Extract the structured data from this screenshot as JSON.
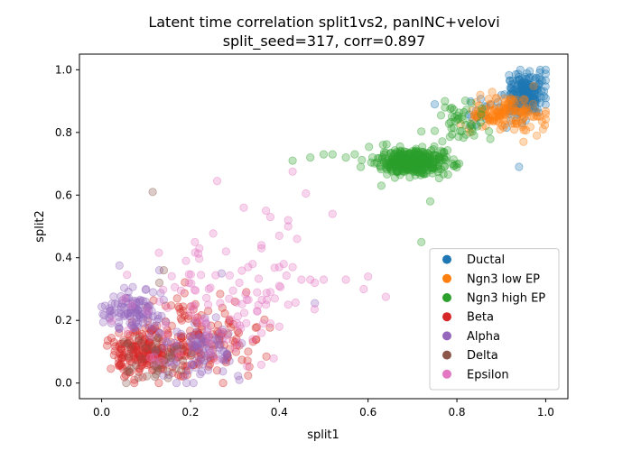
{
  "chart_data": {
    "type": "scatter",
    "title": "Latent time correlation split1vs2, panINC+velovi",
    "subtitle": "split_seed=317, corr=0.897",
    "xlabel": "split1",
    "ylabel": "split2",
    "xlim": [
      -0.05,
      1.05
    ],
    "ylim": [
      -0.05,
      1.05
    ],
    "xticks": [
      "0.0",
      "0.2",
      "0.4",
      "0.6",
      "0.8",
      "1.0"
    ],
    "yticks": [
      "0.0",
      "0.2",
      "0.4",
      "0.6",
      "0.8",
      "1.0"
    ],
    "grid": false,
    "legend_position": "lower-right",
    "series": [
      {
        "name": "Ductal",
        "color": "#1f77b4",
        "clusters": [
          {
            "cx": 0.955,
            "cy": 0.925,
            "sx": 0.022,
            "sy": 0.035,
            "n": 180
          },
          {
            "cx": 0.88,
            "cy": 0.86,
            "sx": 0.04,
            "sy": 0.03,
            "n": 25
          }
        ],
        "points": [
          [
            0.94,
            0.69
          ],
          [
            0.75,
            0.89
          ],
          [
            0.83,
            0.82
          ]
        ]
      },
      {
        "name": "Ngn3 low EP",
        "color": "#ff7f0e",
        "clusters": [
          {
            "cx": 0.9,
            "cy": 0.86,
            "sx": 0.035,
            "sy": 0.028,
            "n": 120
          },
          {
            "cx": 0.97,
            "cy": 0.85,
            "sx": 0.02,
            "sy": 0.02,
            "n": 15
          }
        ],
        "points": [
          [
            0.98,
            0.79
          ],
          [
            0.83,
            0.8
          ],
          [
            0.95,
            0.77
          ]
        ]
      },
      {
        "name": "Ngn3 high EP",
        "color": "#2ca02c",
        "clusters": [
          {
            "cx": 0.7,
            "cy": 0.705,
            "sx": 0.04,
            "sy": 0.02,
            "n": 380
          },
          {
            "cx": 0.81,
            "cy": 0.83,
            "sx": 0.035,
            "sy": 0.03,
            "n": 45
          }
        ],
        "points": [
          [
            0.47,
            0.72
          ],
          [
            0.5,
            0.73
          ],
          [
            0.52,
            0.73
          ],
          [
            0.55,
            0.72
          ],
          [
            0.57,
            0.73
          ],
          [
            0.43,
            0.71
          ],
          [
            0.72,
            0.45
          ],
          [
            0.61,
            0.72
          ],
          [
            0.63,
            0.63
          ],
          [
            0.74,
            0.58
          ],
          [
            0.79,
            0.7
          ]
        ]
      },
      {
        "name": "Beta",
        "color": "#d62728",
        "clusters": [
          {
            "cx": 0.09,
            "cy": 0.1,
            "sx": 0.04,
            "sy": 0.035,
            "n": 170
          },
          {
            "cx": 0.21,
            "cy": 0.14,
            "sx": 0.06,
            "sy": 0.065,
            "n": 170
          }
        ],
        "points": [
          [
            0.3,
            0.26
          ],
          [
            0.31,
            0.12
          ],
          [
            0.33,
            0.1
          ],
          [
            0.26,
            0.04
          ],
          [
            0.24,
            0.23
          ],
          [
            0.17,
            0.27
          ]
        ]
      },
      {
        "name": "Alpha",
        "color": "#9467bd",
        "clusters": [
          {
            "cx": 0.07,
            "cy": 0.23,
            "sx": 0.035,
            "sy": 0.03,
            "n": 110
          },
          {
            "cx": 0.22,
            "cy": 0.1,
            "sx": 0.045,
            "sy": 0.05,
            "n": 90
          }
        ],
        "points": [
          [
            0.04,
            0.375
          ],
          [
            0.48,
            0.255
          ],
          [
            0.27,
            0.35
          ],
          [
            0.13,
            0.36
          ],
          [
            0.1,
            0.3
          ],
          [
            0.31,
            0.01
          ]
        ]
      },
      {
        "name": "Delta",
        "color": "#8c564b",
        "clusters": [
          {
            "cx": 0.12,
            "cy": 0.08,
            "sx": 0.035,
            "sy": 0.035,
            "n": 40
          }
        ],
        "points": [
          [
            0.115,
            0.61
          ],
          [
            0.14,
            0.36
          ],
          [
            0.13,
            0.32
          ],
          [
            0.05,
            0.13
          ],
          [
            0.12,
            0.02
          ]
        ]
      },
      {
        "name": "Epsilon",
        "color": "#e377c2",
        "clusters": [
          {
            "cx": 0.24,
            "cy": 0.22,
            "sx": 0.09,
            "sy": 0.09,
            "n": 85
          }
        ],
        "points": [
          [
            0.26,
            0.645
          ],
          [
            0.32,
            0.56
          ],
          [
            0.43,
            0.675
          ],
          [
            0.37,
            0.55
          ],
          [
            0.38,
            0.53
          ],
          [
            0.42,
            0.52
          ],
          [
            0.42,
            0.5
          ],
          [
            0.44,
            0.46
          ],
          [
            0.4,
            0.47
          ],
          [
            0.36,
            0.43
          ],
          [
            0.36,
            0.44
          ],
          [
            0.52,
            0.54
          ],
          [
            0.46,
            0.605
          ],
          [
            0.43,
            0.37
          ],
          [
            0.45,
            0.33
          ],
          [
            0.47,
            0.33
          ],
          [
            0.48,
            0.32
          ],
          [
            0.5,
            0.33
          ],
          [
            0.55,
            0.33
          ],
          [
            0.59,
            0.3
          ],
          [
            0.6,
            0.34
          ],
          [
            0.64,
            0.275
          ],
          [
            0.34,
            0.38
          ],
          [
            0.31,
            0.32
          ],
          [
            0.4,
            0.37
          ],
          [
            0.41,
            0.38
          ],
          [
            0.22,
            0.43
          ],
          [
            0.21,
            0.45
          ],
          [
            0.19,
            0.39
          ],
          [
            0.28,
            0.42
          ],
          [
            0.4,
            0.31
          ],
          [
            0.38,
            0.29
          ],
          [
            0.37,
            0.25
          ],
          [
            0.35,
            0.23
          ],
          [
            0.38,
            0.19
          ],
          [
            0.4,
            0.18
          ],
          [
            0.36,
            0.16
          ],
          [
            0.34,
            0.14
          ],
          [
            0.39,
            0.27
          ],
          [
            0.42,
            0.25
          ],
          [
            0.33,
            0.37
          ]
        ]
      }
    ]
  }
}
